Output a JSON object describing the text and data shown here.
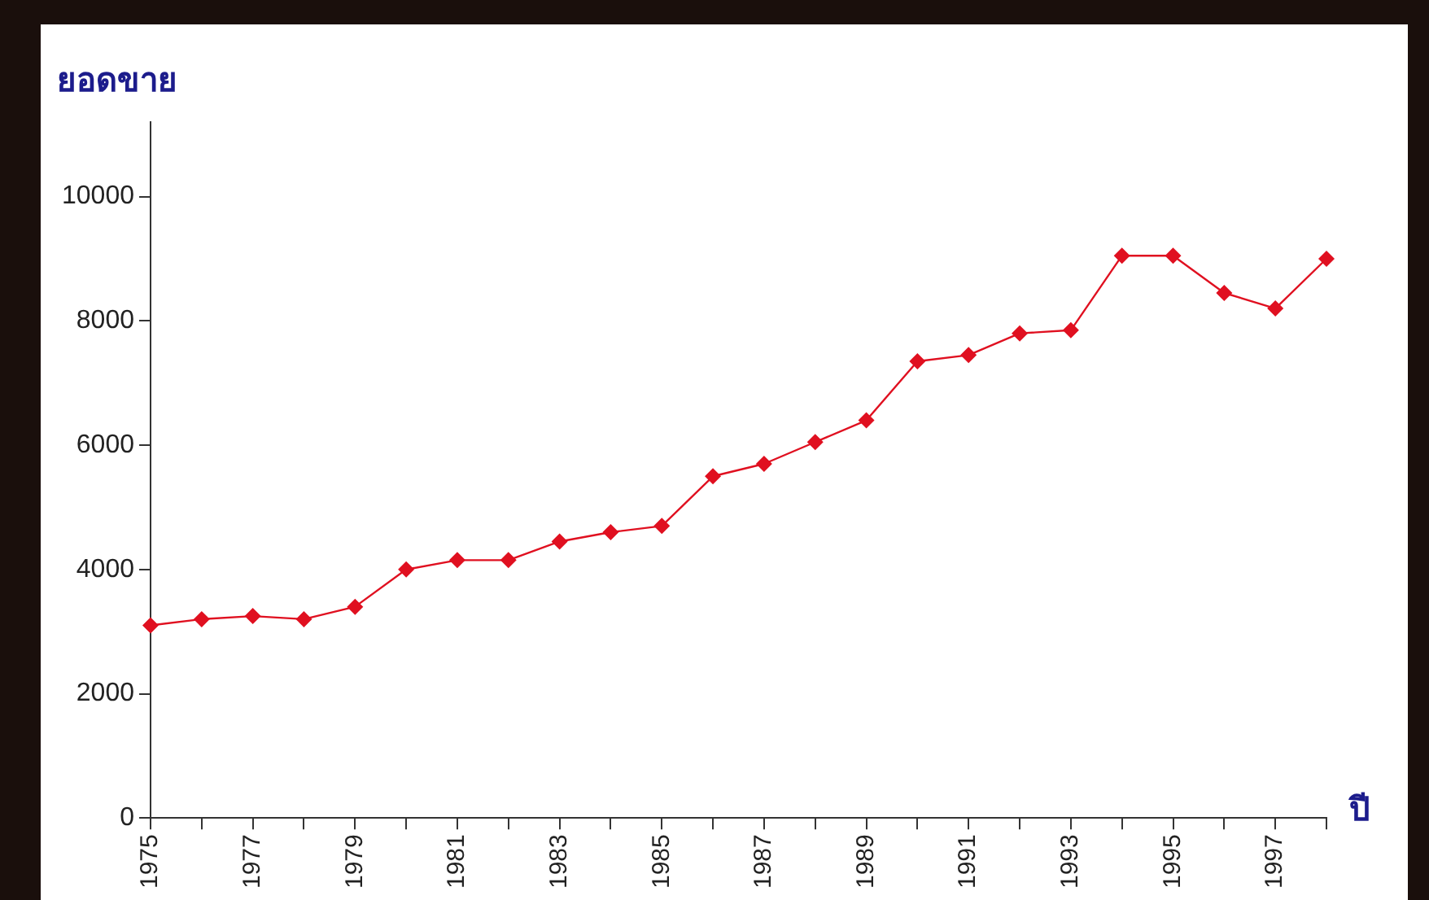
{
  "chart_data": {
    "type": "line",
    "xlabel": "ปี",
    "ylabel": "ยอดขาย",
    "categories": [
      "1975",
      null,
      "1977",
      null,
      "1979",
      null,
      "1981",
      null,
      "1983",
      null,
      "1985",
      null,
      "1987",
      null,
      "1989",
      null,
      "1991",
      null,
      "1993",
      null,
      "1995",
      null,
      "1997",
      null
    ],
    "series": [
      {
        "color": "#e01020",
        "values": [
          3100,
          3200,
          3250,
          3200,
          3400,
          4000,
          4150,
          4150,
          4450,
          4600,
          4700,
          5500,
          5700,
          6050,
          6400,
          7350,
          7450,
          7800,
          7850,
          9050,
          9050,
          8450,
          8200,
          9000
        ]
      }
    ],
    "ylim": [
      0,
      11200
    ],
    "yticks": [
      0,
      2000,
      4000,
      6000,
      8000,
      10000
    ],
    "grid": false,
    "legend": false,
    "marker": "diamond",
    "line_style": "solid"
  }
}
